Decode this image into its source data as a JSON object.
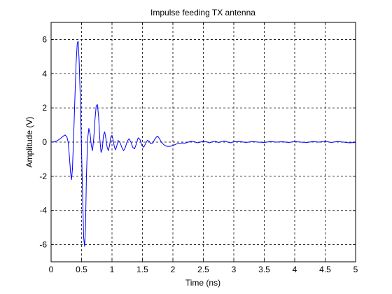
{
  "chart_data": {
    "type": "line",
    "title": "Impulse feeding TX antenna",
    "xlabel": "Time (ns)",
    "ylabel": "Amplitude (V)",
    "xlim": [
      0,
      5
    ],
    "ylim": [
      -7,
      7
    ],
    "x_ticks": [
      0,
      0.5,
      1,
      1.5,
      2,
      2.5,
      3,
      3.5,
      4,
      4.5,
      5
    ],
    "x_tick_labels": [
      "0",
      "0.5",
      "1",
      "1.5",
      "2",
      "2.5",
      "3",
      "3.5",
      "4",
      "4.5",
      "5"
    ],
    "y_ticks": [
      -6,
      -4,
      -2,
      0,
      2,
      4,
      6
    ],
    "y_tick_labels": [
      "-6",
      "-4",
      "-2",
      "0",
      "2",
      "4",
      "6"
    ],
    "grid": true,
    "grid_style": "dashed",
    "line_color": "#0000ff",
    "series": [
      {
        "points": [
          [
            0.0,
            0.0
          ],
          [
            0.05,
            0.02
          ],
          [
            0.1,
            0.08
          ],
          [
            0.15,
            0.2
          ],
          [
            0.2,
            0.35
          ],
          [
            0.23,
            0.42
          ],
          [
            0.26,
            0.3
          ],
          [
            0.28,
            0.0
          ],
          [
            0.3,
            -0.8
          ],
          [
            0.32,
            -1.8
          ],
          [
            0.335,
            -2.2
          ],
          [
            0.35,
            -1.6
          ],
          [
            0.37,
            0.3
          ],
          [
            0.39,
            2.5
          ],
          [
            0.41,
            4.6
          ],
          [
            0.43,
            5.8
          ],
          [
            0.445,
            5.9
          ],
          [
            0.46,
            4.8
          ],
          [
            0.48,
            2.5
          ],
          [
            0.5,
            -0.5
          ],
          [
            0.52,
            -3.5
          ],
          [
            0.535,
            -5.6
          ],
          [
            0.55,
            -6.1
          ],
          [
            0.565,
            -5.0
          ],
          [
            0.58,
            -2.0
          ],
          [
            0.6,
            0.2
          ],
          [
            0.62,
            0.8
          ],
          [
            0.64,
            0.5
          ],
          [
            0.66,
            -0.2
          ],
          [
            0.68,
            -0.5
          ],
          [
            0.7,
            0.2
          ],
          [
            0.72,
            1.3
          ],
          [
            0.74,
            2.1
          ],
          [
            0.76,
            2.2
          ],
          [
            0.78,
            1.5
          ],
          [
            0.8,
            0.2
          ],
          [
            0.82,
            -0.6
          ],
          [
            0.84,
            -0.4
          ],
          [
            0.86,
            0.4
          ],
          [
            0.88,
            0.6
          ],
          [
            0.9,
            0.2
          ],
          [
            0.92,
            -0.3
          ],
          [
            0.94,
            -0.5
          ],
          [
            0.96,
            -0.2
          ],
          [
            0.98,
            0.3
          ],
          [
            1.0,
            0.4
          ],
          [
            1.02,
            0.1
          ],
          [
            1.04,
            -0.3
          ],
          [
            1.06,
            -0.45
          ],
          [
            1.08,
            -0.2
          ],
          [
            1.1,
            0.1
          ],
          [
            1.13,
            0.0
          ],
          [
            1.16,
            -0.3
          ],
          [
            1.19,
            -0.5
          ],
          [
            1.22,
            -0.3
          ],
          [
            1.25,
            0.05
          ],
          [
            1.28,
            0.2
          ],
          [
            1.31,
            0.0
          ],
          [
            1.34,
            -0.3
          ],
          [
            1.37,
            -0.4
          ],
          [
            1.4,
            -0.1
          ],
          [
            1.43,
            0.25
          ],
          [
            1.46,
            0.15
          ],
          [
            1.49,
            -0.2
          ],
          [
            1.52,
            -0.3
          ],
          [
            1.55,
            -0.1
          ],
          [
            1.58,
            0.1
          ],
          [
            1.61,
            0.05
          ],
          [
            1.64,
            -0.1
          ],
          [
            1.67,
            -0.05
          ],
          [
            1.7,
            0.15
          ],
          [
            1.73,
            0.3
          ],
          [
            1.75,
            0.35
          ],
          [
            1.78,
            0.2
          ],
          [
            1.81,
            0.0
          ],
          [
            1.85,
            -0.15
          ],
          [
            1.9,
            -0.25
          ],
          [
            1.95,
            -0.25
          ],
          [
            2.0,
            -0.2
          ],
          [
            2.05,
            -0.12
          ],
          [
            2.1,
            -0.08
          ],
          [
            2.15,
            -0.05
          ],
          [
            2.2,
            -0.06
          ],
          [
            2.25,
            0.0
          ],
          [
            2.3,
            0.04
          ],
          [
            2.35,
            0.02
          ],
          [
            2.4,
            -0.04
          ],
          [
            2.45,
            0.0
          ],
          [
            2.5,
            0.05
          ],
          [
            2.55,
            0.02
          ],
          [
            2.6,
            -0.04
          ],
          [
            2.65,
            0.02
          ],
          [
            2.7,
            0.04
          ],
          [
            2.75,
            -0.02
          ],
          [
            2.8,
            0.03
          ],
          [
            2.85,
            0.06
          ],
          [
            2.9,
            0.0
          ],
          [
            2.95,
            -0.04
          ],
          [
            3.0,
            0.02
          ],
          [
            3.1,
            0.03
          ],
          [
            3.2,
            -0.02
          ],
          [
            3.3,
            0.03
          ],
          [
            3.4,
            0.0
          ],
          [
            3.5,
            -0.02
          ],
          [
            3.6,
            0.03
          ],
          [
            3.7,
            0.0
          ],
          [
            3.8,
            0.02
          ],
          [
            3.9,
            -0.02
          ],
          [
            4.0,
            0.03
          ],
          [
            4.1,
            0.0
          ],
          [
            4.2,
            -0.02
          ],
          [
            4.3,
            0.03
          ],
          [
            4.4,
            0.0
          ],
          [
            4.5,
            0.05
          ],
          [
            4.6,
            -0.02
          ],
          [
            4.7,
            0.03
          ],
          [
            4.8,
            0.0
          ],
          [
            4.9,
            -0.04
          ],
          [
            5.0,
            -0.02
          ]
        ]
      }
    ]
  }
}
